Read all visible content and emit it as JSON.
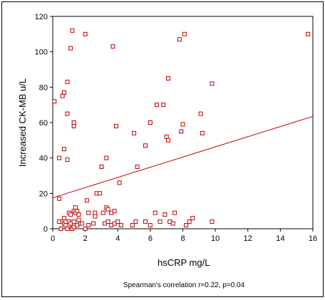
{
  "chart_data": {
    "type": "scatter",
    "title": "",
    "xlabel": "hsCRP mg/L",
    "ylabel": "Increased CK-MB u/L",
    "annotation": "Spearman's correlation r=0.22, p=0.04",
    "xlim": [
      0,
      16
    ],
    "ylim": [
      0,
      120
    ],
    "xticks": [
      0,
      2,
      4,
      6,
      8,
      10,
      12,
      14,
      16
    ],
    "yticks": [
      0,
      20,
      40,
      60,
      80,
      100,
      120
    ],
    "marker_color": "#c00000",
    "line_color": "#c00000",
    "grid": false,
    "fit_line": {
      "x": [
        0,
        16
      ],
      "y": [
        17.5,
        63.5
      ]
    },
    "points": [
      [
        0.1,
        72
      ],
      [
        0.4,
        40
      ],
      [
        0.4,
        17
      ],
      [
        0.4,
        4
      ],
      [
        0.5,
        0
      ],
      [
        0.6,
        4
      ],
      [
        0.6,
        75
      ],
      [
        0.7,
        77
      ],
      [
        0.7,
        45
      ],
      [
        0.7,
        6
      ],
      [
        0.7,
        3
      ],
      [
        0.8,
        2
      ],
      [
        0.8,
        4
      ],
      [
        0.9,
        0
      ],
      [
        0.9,
        83
      ],
      [
        0.9,
        65
      ],
      [
        0.9,
        39
      ],
      [
        1.0,
        9
      ],
      [
        1.0,
        4
      ],
      [
        1.0,
        2
      ],
      [
        1.1,
        3
      ],
      [
        1.1,
        8
      ],
      [
        1.1,
        102
      ],
      [
        1.2,
        112
      ],
      [
        1.2,
        0
      ],
      [
        1.3,
        60
      ],
      [
        1.3,
        58
      ],
      [
        1.3,
        4
      ],
      [
        1.3,
        10
      ],
      [
        1.3,
        1
      ],
      [
        1.4,
        12
      ],
      [
        1.4,
        9
      ],
      [
        1.5,
        10
      ],
      [
        1.5,
        2
      ],
      [
        1.6,
        8
      ],
      [
        1.6,
        5
      ],
      [
        1.7,
        3
      ],
      [
        1.8,
        3
      ],
      [
        2.0,
        110
      ],
      [
        2.0,
        0
      ],
      [
        2.1,
        16
      ],
      [
        2.2,
        9
      ],
      [
        2.2,
        2
      ],
      [
        2.5,
        3
      ],
      [
        2.6,
        9
      ],
      [
        2.6,
        7
      ],
      [
        2.7,
        20
      ],
      [
        2.9,
        20
      ],
      [
        3.0,
        35
      ],
      [
        3.1,
        9
      ],
      [
        3.2,
        3
      ],
      [
        3.3,
        40
      ],
      [
        3.3,
        12
      ],
      [
        3.4,
        11
      ],
      [
        3.4,
        4
      ],
      [
        3.6,
        2
      ],
      [
        3.6,
        9
      ],
      [
        3.7,
        103
      ],
      [
        3.8,
        3
      ],
      [
        3.8,
        10
      ],
      [
        3.9,
        58
      ],
      [
        3.9,
        58
      ],
      [
        4.0,
        4
      ],
      [
        4.1,
        26
      ],
      [
        4.2,
        2
      ],
      [
        4.9,
        2
      ],
      [
        5.0,
        54
      ],
      [
        5.1,
        4
      ],
      [
        5.2,
        35
      ],
      [
        5.7,
        4
      ],
      [
        5.7,
        47
      ],
      [
        6.0,
        2
      ],
      [
        6.0,
        60
      ],
      [
        6.3,
        9
      ],
      [
        6.4,
        70
      ],
      [
        6.6,
        4
      ],
      [
        6.8,
        70
      ],
      [
        6.9,
        8
      ],
      [
        7.0,
        52
      ],
      [
        7.1,
        50
      ],
      [
        7.1,
        85
      ],
      [
        7.2,
        4
      ],
      [
        7.4,
        3
      ],
      [
        7.5,
        9
      ],
      [
        7.8,
        107
      ],
      [
        7.9,
        55
      ],
      [
        8.0,
        59
      ],
      [
        8.1,
        110
      ],
      [
        8.2,
        2
      ],
      [
        8.4,
        4
      ],
      [
        8.6,
        6
      ],
      [
        9.1,
        65
      ],
      [
        9.2,
        54
      ],
      [
        9.8,
        82
      ],
      [
        9.8,
        4
      ],
      [
        15.7,
        110
      ]
    ]
  }
}
